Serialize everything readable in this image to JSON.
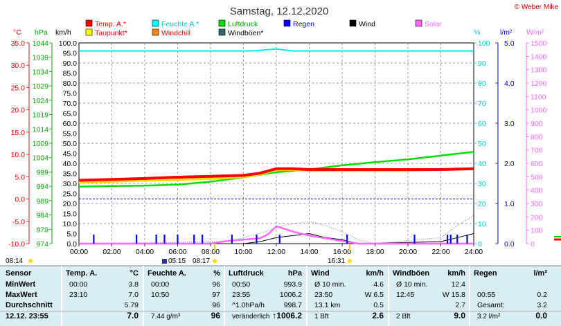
{
  "title": "Samstag, 12.12.2020",
  "credit": "© Weber Mike",
  "legend": [
    {
      "label": "Temp. A.*",
      "color": "#ff0000",
      "text_color": "#ff0000"
    },
    {
      "label": "Feuchte A.*",
      "color": "#00ffff",
      "text_color": "#00cccc"
    },
    {
      "label": "Luftdruck",
      "color": "#00dd00",
      "text_color": "#00aa00"
    },
    {
      "label": "Regen",
      "color": "#0000ff",
      "text_color": "#0000ff"
    },
    {
      "label": "Wind",
      "color": "#000000",
      "text_color": "#000000"
    },
    {
      "label": "Solar",
      "color": "#ff66ff",
      "text_color": "#ff66ff"
    },
    {
      "label": "Taupunkt*",
      "color": "#ffff00",
      "text_color": "#ff0000"
    },
    {
      "label": "Windchill",
      "color": "#ff8800",
      "text_color": "#ff0000"
    },
    {
      "label": "Windböen*",
      "color": "#336666",
      "text_color": "#000000"
    }
  ],
  "axes": {
    "temp": {
      "unit": "°C",
      "color": "#ff0000",
      "ticks": [
        "35.0",
        "30.0",
        "25.0",
        "20.0",
        "15.0",
        "10.0",
        "5.0",
        "0.0",
        "-5.0",
        "-10.0"
      ]
    },
    "pressure": {
      "unit": "hPa",
      "color": "#00aa00",
      "ticks": [
        "1044",
        "1039",
        "1034",
        "1029",
        "1024",
        "1019",
        "1014",
        "1009",
        "1004",
        "999",
        "994",
        "989",
        "984",
        "979",
        "974"
      ]
    },
    "wind": {
      "unit": "km/h",
      "color": "#000000",
      "ticks": [
        "100.0",
        "95.0",
        "90.0",
        "85.0",
        "80.0",
        "75.0",
        "70.0",
        "65.0",
        "60.0",
        "55.0",
        "50.0",
        "45.0",
        "40.0",
        "35.0",
        "30.0",
        "25.0",
        "20.0",
        "15.0",
        "10.0",
        "5.0",
        "0.0"
      ]
    },
    "humidity": {
      "unit": "%",
      "color": "#00cccc",
      "ticks": [
        "100",
        "90",
        "80",
        "70",
        "60",
        "50",
        "40",
        "30",
        "20",
        "10",
        "0"
      ]
    },
    "rain": {
      "unit": "l/m²",
      "color": "#0000ff",
      "ticks": [
        "5.0",
        "4.0",
        "3.0",
        "2.0",
        "1.0",
        "0.0"
      ]
    },
    "solar": {
      "unit": "W/m²",
      "color": "#ff66ff",
      "ticks": [
        "1500",
        "1400",
        "1300",
        "1200",
        "1100",
        "1000",
        "900",
        "800",
        "700",
        "600",
        "500",
        "400",
        "300",
        "200",
        "100",
        "0"
      ]
    },
    "time_ticks": [
      "00:00",
      "02:00",
      "04:00",
      "06:00",
      "08:00",
      "10:00",
      "12:00",
      "14:00",
      "16:00",
      "18:00",
      "20:00",
      "22:00",
      "24:00"
    ]
  },
  "sun_events": {
    "moon_left": "08:14",
    "moonset": "05:15",
    "sunrise": "08:17",
    "noon": "16:31"
  },
  "chart_data": {
    "type": "line",
    "x_unit": "hour",
    "series": [
      {
        "name": "Temp. A.*",
        "axis": "temp",
        "x": [
          0,
          2,
          4,
          6,
          8,
          10,
          11,
          12,
          13,
          14,
          16,
          18,
          20,
          22,
          24
        ],
        "y": [
          4.2,
          4.4,
          4.6,
          4.9,
          5.1,
          5.3,
          5.8,
          6.8,
          6.8,
          6.6,
          6.6,
          6.6,
          6.6,
          6.6,
          6.8
        ]
      },
      {
        "name": "Taupunkt*",
        "axis": "temp",
        "x": [
          0,
          2,
          4,
          6,
          8,
          10,
          11,
          12,
          13,
          14,
          16,
          18,
          20,
          22,
          24
        ],
        "y": [
          3.8,
          4.0,
          4.2,
          4.4,
          4.6,
          5.0,
          5.6,
          6.6,
          6.6,
          6.4,
          6.4,
          6.4,
          6.4,
          6.6,
          6.8
        ]
      },
      {
        "name": "Feuchte A.*",
        "axis": "humidity",
        "x": [
          0,
          4,
          8,
          10.5,
          12,
          13,
          16,
          20,
          24
        ],
        "y": [
          96,
          96,
          96,
          96,
          97,
          96,
          96,
          96,
          96
        ]
      },
      {
        "name": "Luftdruck",
        "axis": "pressure",
        "x": [
          0,
          2,
          4,
          6,
          8,
          10,
          12,
          14,
          16,
          18,
          20,
          22,
          24
        ],
        "y": [
          993.9,
          994.1,
          994.2,
          994.6,
          995.6,
          997.1,
          998.9,
          999.9,
          1001.3,
          1002.4,
          1003.4,
          1004.7,
          1006.0
        ]
      },
      {
        "name": "Solar",
        "axis": "solar",
        "x": [
          0,
          8,
          9,
          10,
          11,
          11.5,
          12,
          12.5,
          13,
          14,
          15,
          16,
          17,
          24
        ],
        "y": [
          0,
          0,
          20,
          30,
          40,
          70,
          130,
          110,
          90,
          60,
          40,
          20,
          0,
          0
        ]
      },
      {
        "name": "Wind",
        "axis": "wind",
        "x": [
          0,
          10,
          11,
          12,
          13,
          14,
          15,
          16,
          17,
          22,
          23,
          24
        ],
        "y": [
          0,
          0,
          1,
          3,
          4,
          5,
          3,
          2,
          0,
          1,
          3,
          5
        ]
      },
      {
        "name": "Windböen*",
        "axis": "wind",
        "x": [
          0,
          9,
          10,
          11,
          12,
          13,
          14,
          15,
          16,
          17,
          18,
          22,
          23,
          24
        ],
        "y": [
          0,
          1,
          3,
          5,
          8,
          10,
          11,
          9,
          6,
          2,
          0,
          3,
          9,
          14
        ]
      }
    ],
    "rain_ticks_hours": [
      0.9,
      3.5,
      4.7,
      5.2,
      6.0,
      7.0,
      7.5,
      9.3,
      10.8,
      12.2,
      16.3,
      20.4,
      22.4,
      22.6,
      23.0,
      23.6
    ],
    "ylim_temp": [
      -10,
      35
    ],
    "ylim_pressure": [
      974,
      1044
    ],
    "ylim_wind": [
      0,
      100
    ],
    "ylim_humidity": [
      0,
      100
    ],
    "ylim_rain": [
      0,
      5
    ],
    "ylim_solar": [
      0,
      1500
    ],
    "grid": true,
    "legend_position": "top"
  },
  "table": {
    "row_labels": [
      "Sensor",
      "MinWert",
      "MaxWert",
      "Durchschnitt",
      "12.12. 23:55"
    ],
    "columns": [
      {
        "head_left": "Temp. A.",
        "head_right": "°C",
        "rows": [
          [
            "00:00",
            "3.8"
          ],
          [
            "23:10",
            "7.0"
          ],
          [
            "",
            "5.79"
          ],
          [
            "",
            "7.0"
          ]
        ]
      },
      {
        "head_left": "Feuchte A.",
        "head_right": "%",
        "rows": [
          [
            "00:00",
            "96"
          ],
          [
            "10:50",
            "97"
          ],
          [
            "",
            "96"
          ],
          [
            "7.44 g/m³",
            "96"
          ]
        ]
      },
      {
        "head_left": "Luftdruck",
        "head_right": "hPa",
        "rows": [
          [
            "00:50",
            "993.9"
          ],
          [
            "23:55",
            "1006.2"
          ],
          [
            "^1.0hPa/h",
            "998.7"
          ],
          [
            "veränderlich",
            "↑1006.2"
          ]
        ]
      },
      {
        "head_left": "Wind",
        "head_right": "km/h",
        "rows": [
          [
            "Ø 10 min.",
            "4.6"
          ],
          [
            "23:50",
            "W 6.5"
          ],
          [
            "13.1 km",
            "0.5"
          ],
          [
            "1 Bft",
            "2.6"
          ]
        ]
      },
      {
        "head_left": "Windböen",
        "head_right": "km/h",
        "rows": [
          [
            "Ø 10 min.",
            "12.4"
          ],
          [
            "12:45",
            "W 15.8"
          ],
          [
            "",
            "2.7"
          ],
          [
            "2 Bft",
            "9.0"
          ]
        ]
      },
      {
        "head_left": "Regen",
        "head_right": "l/m²",
        "rows": [
          [
            "",
            ""
          ],
          [
            "00:55",
            "0.2"
          ],
          [
            "Gesamt:",
            "3.2"
          ],
          [
            "3.2 l/m²",
            "0.0"
          ]
        ]
      }
    ]
  }
}
